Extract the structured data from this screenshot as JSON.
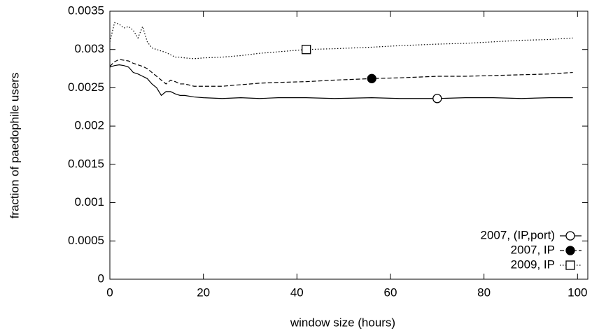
{
  "chart_data": {
    "type": "line",
    "xlabel": "window size (hours)",
    "ylabel": "fraction of paedophile users",
    "x": [
      0,
      1,
      2,
      3,
      4,
      5,
      6,
      7,
      8,
      9,
      10,
      11,
      12,
      13,
      14,
      15,
      16,
      18,
      20,
      24,
      28,
      32,
      36,
      42,
      48,
      56,
      62,
      70,
      76,
      82,
      88,
      94,
      99
    ],
    "series": [
      {
        "name": "2007, (IP,port)",
        "color": "#000000",
        "dash": "solid",
        "marker": "circle-open",
        "marker_x": 70,
        "values": [
          0.00277,
          0.00279,
          0.0028,
          0.00279,
          0.00277,
          0.0027,
          0.00268,
          0.00265,
          0.00262,
          0.00255,
          0.0025,
          0.0024,
          0.00245,
          0.00245,
          0.00242,
          0.0024,
          0.0024,
          0.00238,
          0.00237,
          0.00236,
          0.00237,
          0.00236,
          0.00237,
          0.00237,
          0.00236,
          0.00237,
          0.00236,
          0.00236,
          0.00237,
          0.00237,
          0.00236,
          0.00237,
          0.00237
        ]
      },
      {
        "name": "2007, IP",
        "color": "#000000",
        "dash": "dashed",
        "marker": "circle-filled",
        "marker_x": 56,
        "values": [
          0.00278,
          0.00284,
          0.00287,
          0.00286,
          0.00285,
          0.00282,
          0.0028,
          0.00278,
          0.00275,
          0.0027,
          0.00265,
          0.0026,
          0.00255,
          0.0026,
          0.00258,
          0.00255,
          0.00255,
          0.00252,
          0.00252,
          0.00252,
          0.00254,
          0.00256,
          0.00257,
          0.00258,
          0.0026,
          0.00262,
          0.00263,
          0.00265,
          0.00265,
          0.00266,
          0.00267,
          0.00268,
          0.0027
        ]
      },
      {
        "name": "2009, IP",
        "color": "#000000",
        "dash": "dotted",
        "marker": "square-open",
        "marker_x": 42,
        "values": [
          0.0031,
          0.00335,
          0.00333,
          0.00328,
          0.0033,
          0.00325,
          0.00315,
          0.0033,
          0.0031,
          0.00302,
          0.003,
          0.00298,
          0.00296,
          0.00293,
          0.0029,
          0.0029,
          0.00289,
          0.00288,
          0.00289,
          0.0029,
          0.00292,
          0.00295,
          0.00297,
          0.003,
          0.00301,
          0.00303,
          0.00305,
          0.00307,
          0.00308,
          0.0031,
          0.00312,
          0.00313,
          0.00315
        ]
      }
    ],
    "xlim": [
      0,
      102.2
    ],
    "ylim": [
      0,
      0.0035
    ],
    "xticks": [
      0,
      20,
      40,
      60,
      80,
      100
    ],
    "yticks": [
      0,
      0.0005,
      0.001,
      0.0015,
      0.002,
      0.0025,
      0.003,
      0.0035
    ],
    "legend": "lower right"
  }
}
